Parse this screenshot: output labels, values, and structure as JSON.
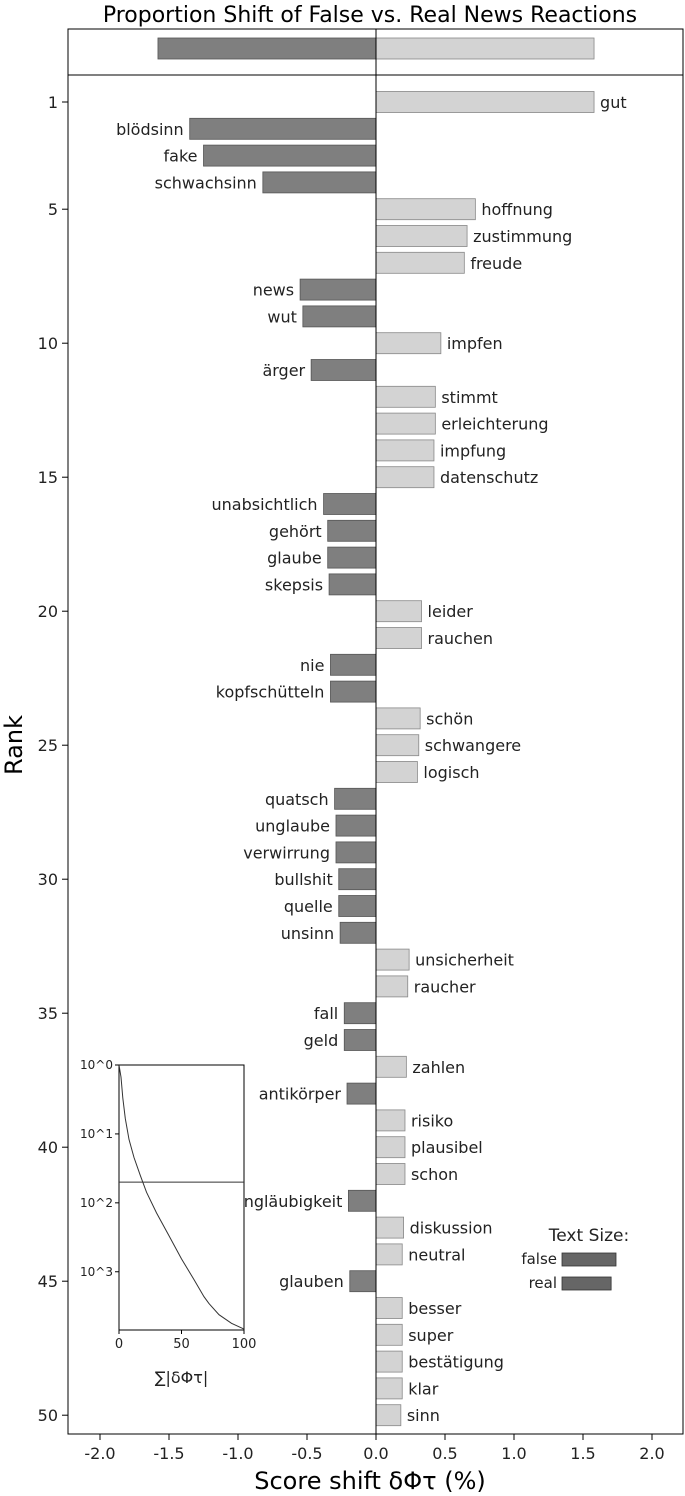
{
  "chart_data": {
    "type": "bar",
    "title": "Proportion Shift of False vs. Real News Reactions",
    "xlabel": "Score shift δΦτ (%)",
    "ylabel": "Rank",
    "xlim": [
      -2.2,
      2.2
    ],
    "xticks": [
      "-2.0",
      "-1.5",
      "-1.0",
      "-0.5",
      "0.0",
      "0.5",
      "1.0",
      "1.5",
      "2.0"
    ],
    "yticks": [
      "1",
      "5",
      "10",
      "15",
      "20",
      "25",
      "30",
      "35",
      "40",
      "45",
      "50"
    ],
    "colors": {
      "false": "#7f7f7f",
      "real": "#d3d3d3"
    },
    "summary_bar": {
      "false": -1.58,
      "real": 1.58
    },
    "words": [
      {
        "rank": 1,
        "word": "gut",
        "value": 1.58
      },
      {
        "rank": 2,
        "word": "blödsinn",
        "value": -1.35
      },
      {
        "rank": 3,
        "word": "fake",
        "value": -1.25
      },
      {
        "rank": 4,
        "word": "schwachsinn",
        "value": -0.82
      },
      {
        "rank": 5,
        "word": "hoffnung",
        "value": 0.72
      },
      {
        "rank": 6,
        "word": "zustimmung",
        "value": 0.66
      },
      {
        "rank": 7,
        "word": "freude",
        "value": 0.64
      },
      {
        "rank": 8,
        "word": "news",
        "value": -0.55
      },
      {
        "rank": 9,
        "word": "wut",
        "value": -0.53
      },
      {
        "rank": 10,
        "word": "impfen",
        "value": 0.47
      },
      {
        "rank": 11,
        "word": "ärger",
        "value": -0.47
      },
      {
        "rank": 12,
        "word": "stimmt",
        "value": 0.43
      },
      {
        "rank": 13,
        "word": "erleichterung",
        "value": 0.43
      },
      {
        "rank": 14,
        "word": "impfung",
        "value": 0.42
      },
      {
        "rank": 15,
        "word": "datenschutz",
        "value": 0.42
      },
      {
        "rank": 16,
        "word": "unabsichtlich",
        "value": -0.38
      },
      {
        "rank": 17,
        "word": "gehört",
        "value": -0.35
      },
      {
        "rank": 18,
        "word": "glaube",
        "value": -0.35
      },
      {
        "rank": 19,
        "word": "skepsis",
        "value": -0.34
      },
      {
        "rank": 20,
        "word": "leider",
        "value": 0.33
      },
      {
        "rank": 21,
        "word": "rauchen",
        "value": 0.33
      },
      {
        "rank": 22,
        "word": "nie",
        "value": -0.33
      },
      {
        "rank": 23,
        "word": "kopfschütteln",
        "value": -0.33
      },
      {
        "rank": 24,
        "word": "schön",
        "value": 0.32
      },
      {
        "rank": 25,
        "word": "schwangere",
        "value": 0.31
      },
      {
        "rank": 26,
        "word": "logisch",
        "value": 0.3
      },
      {
        "rank": 27,
        "word": "quatsch",
        "value": -0.3
      },
      {
        "rank": 28,
        "word": "unglaube",
        "value": -0.29
      },
      {
        "rank": 29,
        "word": "verwirrung",
        "value": -0.29
      },
      {
        "rank": 30,
        "word": "bullshit",
        "value": -0.27
      },
      {
        "rank": 31,
        "word": "quelle",
        "value": -0.27
      },
      {
        "rank": 32,
        "word": "unsinn",
        "value": -0.26
      },
      {
        "rank": 33,
        "word": "unsicherheit",
        "value": 0.24
      },
      {
        "rank": 34,
        "word": "raucher",
        "value": 0.23
      },
      {
        "rank": 35,
        "word": "fall",
        "value": -0.23
      },
      {
        "rank": 36,
        "word": "geld",
        "value": -0.23
      },
      {
        "rank": 37,
        "word": "zahlen",
        "value": 0.22
      },
      {
        "rank": 38,
        "word": "antikörper",
        "value": -0.21
      },
      {
        "rank": 39,
        "word": "risiko",
        "value": 0.21
      },
      {
        "rank": 40,
        "word": "plausibel",
        "value": 0.21
      },
      {
        "rank": 41,
        "word": "schon",
        "value": 0.21
      },
      {
        "rank": 42,
        "word": "ungläubigkeit",
        "value": -0.2
      },
      {
        "rank": 43,
        "word": "diskussion",
        "value": 0.2
      },
      {
        "rank": 44,
        "word": "neutral",
        "value": 0.19
      },
      {
        "rank": 45,
        "word": "glauben",
        "value": -0.19
      },
      {
        "rank": 46,
        "word": "besser",
        "value": 0.19
      },
      {
        "rank": 47,
        "word": "super",
        "value": 0.19
      },
      {
        "rank": 48,
        "word": "bestätigung",
        "value": 0.19
      },
      {
        "rank": 49,
        "word": "klar",
        "value": 0.19
      },
      {
        "rank": 50,
        "word": "sinn",
        "value": 0.18
      }
    ],
    "text_size_legend": {
      "title": "Text Size:",
      "entries": [
        {
          "label": "false",
          "fraction": 1.0
        },
        {
          "label": "real",
          "fraction": 0.91
        }
      ]
    },
    "inset": {
      "xlabel": "∑|δΦτ|",
      "xlim": [
        0,
        100
      ],
      "xticks": [
        "0",
        "50",
        "100"
      ],
      "yticks": [
        "10^0",
        "10^1",
        "10^2",
        "10^3"
      ],
      "ylog_range": [
        1,
        7000
      ],
      "threshold_rank": 50,
      "curve": [
        {
          "x": 0,
          "rank": 1
        },
        {
          "x": 1.6,
          "rank": 1.5
        },
        {
          "x": 3,
          "rank": 3
        },
        {
          "x": 5,
          "rank": 6
        },
        {
          "x": 8,
          "rank": 12
        },
        {
          "x": 12,
          "rank": 22
        },
        {
          "x": 17,
          "rank": 40
        },
        {
          "x": 22,
          "rank": 70
        },
        {
          "x": 30,
          "rank": 140
        },
        {
          "x": 40,
          "rank": 300
        },
        {
          "x": 50,
          "rank": 650
        },
        {
          "x": 60,
          "rank": 1300
        },
        {
          "x": 68,
          "rank": 2300
        },
        {
          "x": 72,
          "rank": 2900
        },
        {
          "x": 80,
          "rank": 4200
        },
        {
          "x": 90,
          "rank": 5600
        },
        {
          "x": 100,
          "rank": 6800
        }
      ]
    }
  }
}
